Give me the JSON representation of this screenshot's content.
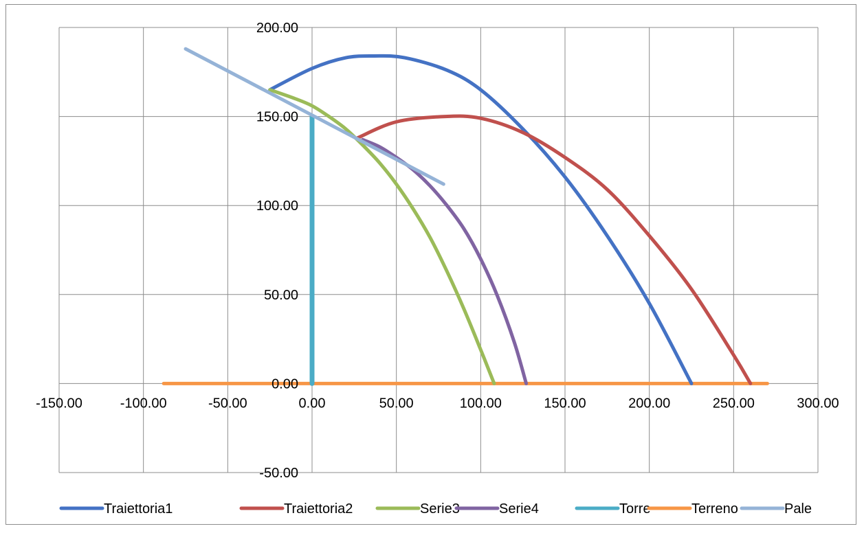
{
  "chart_data": {
    "type": "line",
    "title": "",
    "xlabel": "",
    "ylabel": "",
    "xlim": [
      -150,
      300
    ],
    "ylim": [
      -50,
      200
    ],
    "x_ticks": [
      -150,
      -100,
      -50,
      0,
      50,
      100,
      150,
      200,
      250,
      300
    ],
    "y_ticks": [
      -50,
      0,
      50,
      100,
      150,
      200
    ],
    "x_tick_labels": [
      "-150.00",
      "-100.00",
      "-50.00",
      "0.00",
      "50.00",
      "100.00",
      "150.00",
      "200.00",
      "250.00",
      "300.00"
    ],
    "y_tick_labels": [
      "-50.00",
      "0.00",
      "50.00",
      "100.00",
      "150.00",
      "200.00"
    ],
    "grid": true,
    "legend_position": "bottom",
    "series": [
      {
        "name": "Traiettoria1",
        "color": "#4472C4",
        "x": [
          -25,
          0,
          20,
          37,
          55,
          80,
          100,
          125,
          150,
          175,
          200,
          225
        ],
        "y": [
          165,
          177,
          183,
          184,
          183,
          176,
          165,
          143,
          116,
          83,
          45,
          0
        ]
      },
      {
        "name": "Traiettoria2",
        "color": "#C0504D",
        "x": [
          27,
          50,
          79,
          100,
          125,
          150,
          175,
          200,
          225,
          250,
          260
        ],
        "y": [
          138,
          147,
          150,
          149,
          141,
          127,
          109,
          83,
          53,
          16,
          0
        ]
      },
      {
        "name": "Serie3",
        "color": "#9BBB59",
        "x": [
          -25,
          -10,
          0,
          10,
          20,
          30,
          40,
          50,
          60,
          70,
          80,
          90,
          100,
          108
        ],
        "y": [
          165,
          160,
          156,
          150,
          143,
          134,
          124,
          112,
          98,
          82,
          63,
          42,
          19,
          0
        ]
      },
      {
        "name": "Serie4",
        "color": "#8064A2",
        "x": [
          30,
          40,
          50,
          60,
          70,
          80,
          90,
          100,
          110,
          120,
          127
        ],
        "y": [
          137,
          133,
          127,
          120,
          111,
          100,
          87,
          70,
          49,
          23,
          0
        ]
      },
      {
        "name": "Torre",
        "color": "#4BACC6",
        "x": [
          0,
          0
        ],
        "y": [
          0,
          150
        ]
      },
      {
        "name": "Terreno",
        "color": "#F79646",
        "x": [
          -88,
          270
        ],
        "y": [
          0,
          0
        ]
      },
      {
        "name": "Pale",
        "color": "#95B3D7",
        "x": [
          -75,
          78
        ],
        "y": [
          188,
          112
        ]
      }
    ]
  }
}
